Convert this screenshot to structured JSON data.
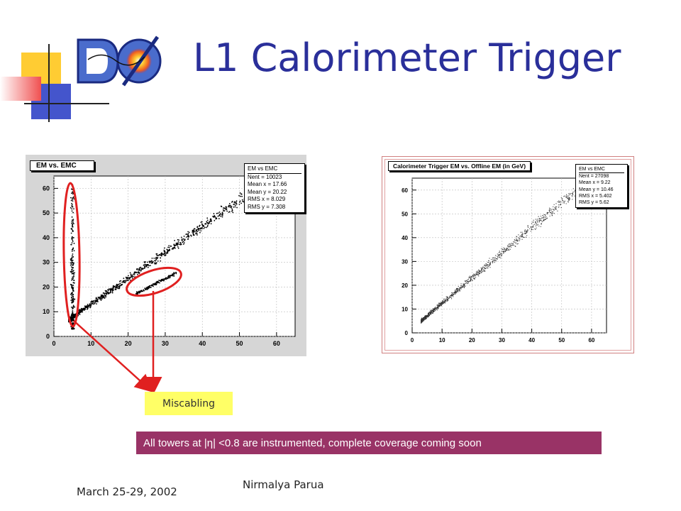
{
  "slide": {
    "title": "L1 Calorimeter Trigger",
    "logo_text": "DØ",
    "callout_label": "Miscabling",
    "coverage_note": "All towers at |η| <0.8 are instrumented, complete coverage coming soon",
    "date": "March 25-29, 2002",
    "author": "Nirmalya Parua"
  },
  "colors": {
    "title": "#2a2f9a",
    "callout_fill": "#ffff66",
    "note_fill": "#993366",
    "highlight": "#e02020",
    "logo_blue": "#4a6ccc",
    "logo_yellow": "#ffcc33",
    "logo_red": "#e03030"
  },
  "chart_data": [
    {
      "type": "scatter",
      "title": "EM vs. EMC",
      "xlim": [
        0,
        65
      ],
      "ylim": [
        0,
        65
      ],
      "xticks": [
        0,
        10,
        20,
        30,
        40,
        50,
        60
      ],
      "yticks": [
        0,
        10,
        20,
        30,
        40,
        50,
        60
      ],
      "grid": true,
      "stats": [
        {
          "label": "EM vs EMC",
          "value": ""
        },
        {
          "label": "Nent =",
          "value": "10023"
        },
        {
          "label": "Mean x =",
          "value": "17.66"
        },
        {
          "label": "Mean y =",
          "value": "20.22"
        },
        {
          "label": "RMS x =",
          "value": "8.029"
        },
        {
          "label": "RMS y =",
          "value": "7.308"
        }
      ],
      "series": [
        {
          "description": "main band",
          "x_range": [
            4,
            56
          ],
          "slope": 1.05,
          "intercept": 2.5
        },
        {
          "description": "vertical band",
          "x": 5,
          "y_range": [
            3,
            62
          ]
        },
        {
          "description": "miscabled band",
          "x_range": [
            22,
            33
          ],
          "slope": 0.78,
          "intercept": 0
        }
      ]
    },
    {
      "type": "scatter",
      "title": "Calorimeter Trigger EM vs. Offline EM (in GeV)",
      "xlim": [
        0,
        65
      ],
      "ylim": [
        0,
        65
      ],
      "xticks": [
        0,
        10,
        20,
        30,
        40,
        50,
        60
      ],
      "yticks": [
        0,
        10,
        20,
        30,
        40,
        50,
        60
      ],
      "grid": true,
      "stats": [
        {
          "label": "EM vs EMC",
          "value": ""
        },
        {
          "label": "Nent =",
          "value": "27098"
        },
        {
          "label": "Mean x =",
          "value": "9.22"
        },
        {
          "label": "Mean y =",
          "value": "10.46"
        },
        {
          "label": "RMS x =",
          "value": "5.402"
        },
        {
          "label": "RMS y =",
          "value": "5.62"
        }
      ],
      "series": [
        {
          "description": "main band",
          "x_range": [
            3,
            60
          ],
          "slope": 1.06,
          "intercept": 1.8
        }
      ]
    }
  ]
}
